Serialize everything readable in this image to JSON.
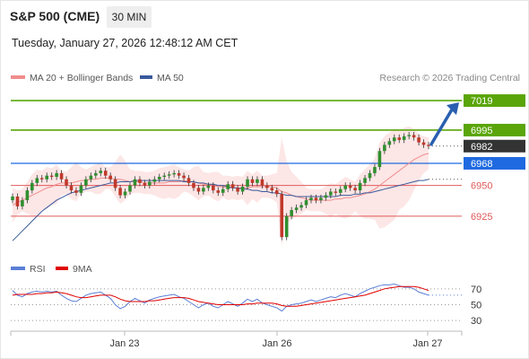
{
  "header": {
    "symbol": "S&P 500 (CME)",
    "timeframe": "30 MIN",
    "datetime": "Tuesday, January 27, 2026 12:48:12 AM CET"
  },
  "legend": {
    "ma20": "MA 20 + Bollinger Bands",
    "ma50": "MA 50",
    "credit": "Research © 2026 Trading Central"
  },
  "colors": {
    "green": "#5aa50a",
    "blue": "#1f6ae0",
    "red": "#e05a5a",
    "dark": "#333333",
    "ma20": "#f08c8c",
    "ma50": "#3a5a9c",
    "band": "#fde2e2",
    "rsi": "#5b7fd6",
    "rsi_ma": "#e00000",
    "candle_up": "#2f8f2f",
    "candle_down": "#c0392b"
  },
  "chart_data": {
    "type": "line",
    "price_range": [
      6895,
      7030
    ],
    "x_ticks": [
      "Jan 23",
      "Jan 26",
      "Jan 27"
    ],
    "levels": [
      {
        "value": 7019,
        "label": "7019",
        "color": "green",
        "kind": "resistance"
      },
      {
        "value": 6995,
        "label": "6995",
        "color": "green",
        "kind": "resistance"
      },
      {
        "value": 6982,
        "label": "6982",
        "color": "dark",
        "kind": "last"
      },
      {
        "value": 6968,
        "label": "6968",
        "color": "blue",
        "kind": "pivot"
      },
      {
        "value": 6950,
        "label": "6950",
        "color": "red",
        "kind": "support"
      },
      {
        "value": 6925,
        "label": "6925",
        "color": "red",
        "kind": "support"
      }
    ],
    "close": [
      6941,
      6933,
      6938,
      6946,
      6952,
      6956,
      6955,
      6958,
      6957,
      6960,
      6955,
      6950,
      6946,
      6944,
      6950,
      6955,
      6958,
      6960,
      6962,
      6958,
      6955,
      6948,
      6942,
      6945,
      6950,
      6955,
      6952,
      6950,
      6953,
      6955,
      6957,
      6958,
      6959,
      6960,
      6958,
      6956,
      6952,
      6948,
      6945,
      6948,
      6950,
      6946,
      6944,
      6947,
      6951,
      6948,
      6945,
      6949,
      6955,
      6952,
      6955,
      6950,
      6948,
      6946,
      6943,
      6908,
      6925,
      6930,
      6932,
      6934,
      6938,
      6940,
      6938,
      6940,
      6942,
      6945,
      6944,
      6947,
      6950,
      6948,
      6946,
      6952,
      6956,
      6960,
      6965,
      6978,
      6983,
      6986,
      6989,
      6987,
      6990,
      6991,
      6989,
      6985,
      6983,
      6982
    ],
    "ma20": [
      6934,
      6936,
      6938,
      6940,
      6942,
      6944,
      6946,
      6948,
      6949,
      6951,
      6952,
      6952,
      6952,
      6953,
      6954,
      6954,
      6955,
      6955,
      6956,
      6956,
      6956,
      6955,
      6955,
      6954,
      6953,
      6953,
      6953,
      6952,
      6952,
      6952,
      6952,
      6952,
      6953,
      6953,
      6953,
      6954,
      6953,
      6953,
      6952,
      6951,
      6951,
      6950,
      6949,
      6949,
      6948,
      6948,
      6948,
      6948,
      6948,
      6949,
      6949,
      6949,
      6949,
      6949,
      6948,
      6945,
      6944,
      6942,
      6941,
      6940,
      6939,
      6938,
      6938,
      6938,
      6938,
      6938,
      6939,
      6939,
      6940,
      6940,
      6941,
      6942,
      6943,
      6945,
      6947,
      6950,
      6953,
      6956,
      6959,
      6962,
      6965,
      6968,
      6971,
      6973,
      6975,
      6976
    ],
    "ma50": [
      6905,
      6909,
      6913,
      6917,
      6921,
      6925,
      6929,
      6932,
      6935,
      6938,
      6940,
      6942,
      6944,
      6945,
      6946,
      6947,
      6948,
      6949,
      6950,
      6951,
      6952,
      6952,
      6953,
      6953,
      6953,
      6954,
      6954,
      6954,
      6954,
      6954,
      6954,
      6954,
      6954,
      6954,
      6954,
      6953,
      6953,
      6953,
      6952,
      6952,
      6951,
      6951,
      6950,
      6950,
      6949,
      6948,
      6948,
      6947,
      6947,
      6946,
      6946,
      6945,
      6945,
      6944,
      6944,
      6943,
      6942,
      6942,
      6941,
      6941,
      6941,
      6941,
      6941,
      6941,
      6941,
      6941,
      6941,
      6942,
      6942,
      6942,
      6943,
      6943,
      6944,
      6944,
      6945,
      6946,
      6947,
      6948,
      6949,
      6950,
      6951,
      6952,
      6953,
      6954,
      6954,
      6955
    ],
    "rsi_levels": [
      70,
      50,
      30
    ],
    "rsi_range": [
      20,
      80
    ],
    "rsi": [
      68,
      62,
      60,
      64,
      66,
      67,
      66,
      67,
      66,
      67,
      62,
      58,
      55,
      54,
      58,
      62,
      64,
      65,
      66,
      62,
      58,
      50,
      45,
      48,
      54,
      58,
      55,
      52,
      56,
      58,
      60,
      61,
      62,
      63,
      60,
      58,
      54,
      50,
      46,
      50,
      52,
      48,
      46,
      50,
      54,
      51,
      48,
      52,
      57,
      54,
      57,
      52,
      50,
      48,
      46,
      42,
      48,
      50,
      51,
      52,
      54,
      56,
      54,
      56,
      58,
      60,
      59,
      62,
      64,
      62,
      60,
      64,
      67,
      70,
      72,
      74,
      75,
      75,
      76,
      74,
      72,
      72,
      70,
      66,
      64,
      62
    ],
    "rsi_ma": [
      62,
      63,
      63,
      63,
      63,
      64,
      64,
      65,
      65,
      66,
      65,
      64,
      62,
      60,
      59,
      59,
      60,
      61,
      62,
      62,
      62,
      60,
      57,
      55,
      54,
      54,
      54,
      54,
      55,
      55,
      56,
      57,
      58,
      59,
      59,
      59,
      58,
      56,
      54,
      53,
      52,
      51,
      50,
      50,
      50,
      50,
      50,
      50,
      51,
      51,
      52,
      52,
      52,
      52,
      51,
      49,
      48,
      48,
      48,
      49,
      50,
      51,
      52,
      53,
      54,
      55,
      56,
      57,
      58,
      59,
      60,
      61,
      62,
      64,
      66,
      68,
      70,
      71,
      72,
      73,
      73,
      73,
      73,
      72,
      70,
      68
    ]
  }
}
